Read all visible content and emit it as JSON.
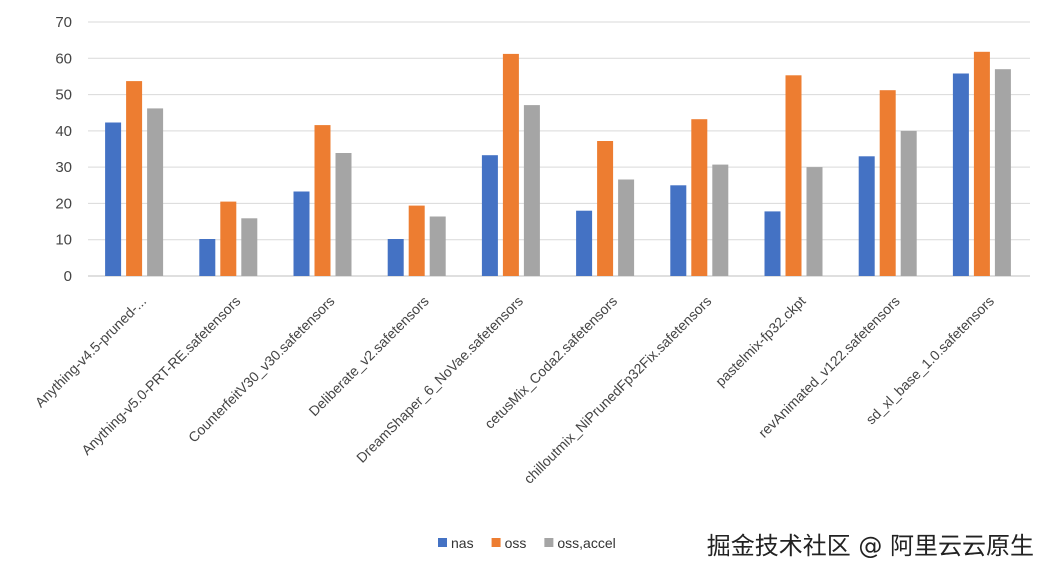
{
  "chart_data": {
    "type": "bar",
    "title": "",
    "xlabel": "",
    "ylabel": "",
    "ylim": [
      0,
      70
    ],
    "yticks": [
      0,
      10,
      20,
      30,
      40,
      50,
      60,
      70
    ],
    "grid": true,
    "legend_position": "bottom",
    "categories": [
      "Anything-v4.5-pruned-...",
      "Anything-v5.0-PRT-RE.safetensors",
      "CounterfeitV30_v30.safetensors",
      "Deliberate_v2.safetensors",
      "DreamShaper_6_NoVae.safetensors",
      "cetusMix_Coda2.safetensors",
      "chilloutmix_NiPrunedFp32Fix.safetensors",
      "pastelmix-fp32.ckpt",
      "revAnimated_v122.safetensors",
      "sd_xl_base_1.0.safetensors"
    ],
    "series": [
      {
        "name": "nas",
        "color": "#4472c4",
        "values": [
          42.3,
          10.2,
          23.3,
          10.2,
          33.3,
          18.0,
          25.0,
          17.8,
          33.0,
          55.8
        ]
      },
      {
        "name": "oss",
        "color": "#ed7d31",
        "values": [
          53.7,
          20.5,
          41.6,
          19.4,
          61.2,
          37.2,
          43.2,
          55.3,
          51.2,
          61.8
        ]
      },
      {
        "name": "oss,accel",
        "color": "#a5a5a5",
        "values": [
          46.2,
          15.9,
          33.9,
          16.4,
          47.1,
          26.6,
          30.7,
          30.0,
          40.0,
          57.0
        ]
      }
    ]
  },
  "watermark": "掘金技术社区 @ 阿里云云原生"
}
